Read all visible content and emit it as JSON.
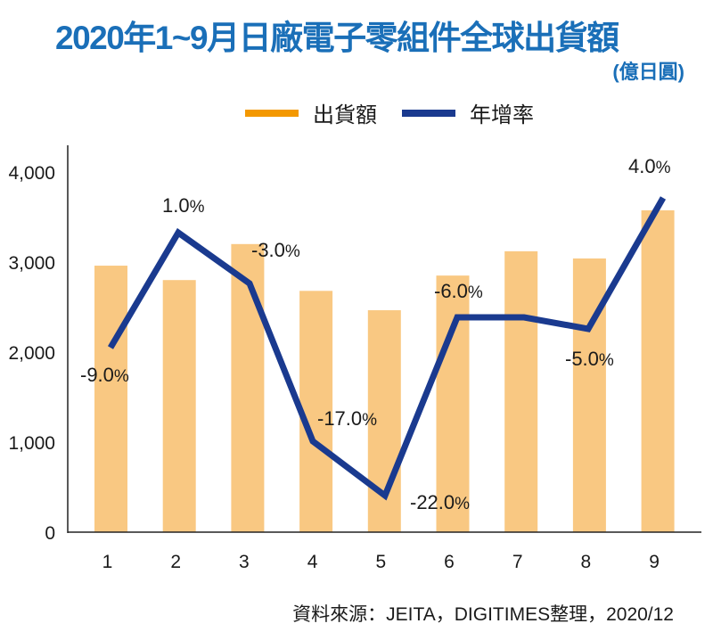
{
  "title": "2020年1~9月日廠電子零組件全球出貨額",
  "subtitle": "(億日圓)",
  "source": "資料來源：JEITA，DIGITIMES整理，2020/12",
  "colors": {
    "title": "#1A6FB8",
    "bar": "#F9C882",
    "bar_legend": "#F39800",
    "line": "#1A3A8F",
    "axis": "#222222",
    "text": "#1a1a1a"
  },
  "legend": [
    {
      "label": "出貨額",
      "swatch": "bar_legend"
    },
    {
      "label": "年增率",
      "swatch": "line"
    }
  ],
  "chart_data": {
    "type": "bar+line",
    "title": "2020年1~9月日廠電子零組件全球出貨額",
    "unit": "億日圓",
    "categories": [
      "1",
      "2",
      "3",
      "4",
      "5",
      "6",
      "7",
      "8",
      "9"
    ],
    "xlabel": "",
    "ylabel": "",
    "ylim": [
      0,
      4000
    ],
    "yticks": [
      0,
      1000,
      2000,
      3000,
      4000
    ],
    "ytick_labels": [
      "0",
      "1,000",
      "2,000",
      "3,000",
      "4,000"
    ],
    "grid": false,
    "legend_position": "top-center",
    "series": [
      {
        "name": "出貨額",
        "type": "bar",
        "axis": "left",
        "values": [
          2960,
          2800,
          3200,
          2680,
          2465,
          2850,
          3120,
          3040,
          3575
        ]
      },
      {
        "name": "年增率",
        "type": "line",
        "axis": "right-hidden",
        "unit": "%",
        "values": [
          -9.0,
          1.0,
          -3.0,
          -17.0,
          -22.0,
          -6.0,
          null,
          -5.0,
          4.0
        ],
        "labels": [
          "-9.0%",
          "1.0%",
          "-3.0%",
          "-17.0%",
          "-22.0%",
          "-6.0%",
          "",
          "-5.0%",
          "4.0%"
        ]
      }
    ]
  }
}
